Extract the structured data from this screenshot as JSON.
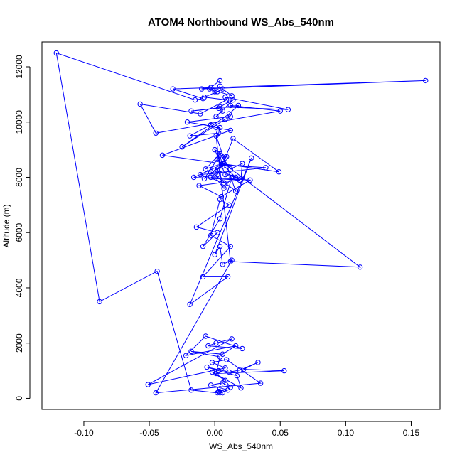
{
  "chart_data": {
    "type": "scatter",
    "mode": "lines+markers",
    "title": "ATOM4 Northbound WS_Abs_540nm",
    "xlabel": "WS_Abs_540nm",
    "ylabel": "Altitude (m)",
    "xlim": [
      -0.132,
      0.172
    ],
    "ylim": [
      -400,
      12900
    ],
    "xticks": [
      -0.1,
      -0.05,
      0.0,
      0.05,
      0.1,
      0.15
    ],
    "xtick_labels": [
      "-0.10",
      "-0.05",
      "0.00",
      "0.05",
      "0.10",
      "0.15"
    ],
    "yticks": [
      0,
      2000,
      4000,
      6000,
      8000,
      10000,
      12000
    ],
    "ytick_labels": [
      "0",
      "2000",
      "4000",
      "6000",
      "8000",
      "10000",
      "12000"
    ],
    "color": "#0000ff",
    "marker": "open-circle",
    "grid": false,
    "legend": false,
    "series": [
      {
        "x": [
          0.004,
          0.01,
          -0.003,
          0.006,
          0.012,
          0.008,
          -0.002,
          0.02,
          0.017,
          0.003,
          -0.006,
          0.011,
          0.019,
          0.033,
          0.022,
          0.053,
          0.001,
          0.004,
          -0.018,
          0.006,
          0.016,
          -0.022,
          -0.007,
          0.021,
          -0.005,
          0.001,
          0.013,
          -0.051,
          0.008,
          -0.002,
          0.009,
          0.035,
          -0.045,
          0.013,
          0.006,
          0.004,
          0.0,
          0.028,
          -0.019,
          0.01,
          -0.009,
          0.012,
          -0.003,
          0.004,
          0.011,
          -0.014,
          0.002,
          -0.009,
          0.004,
          0.013,
          0.007,
          -0.003,
          0.016,
          0.001,
          0.012,
          0.111,
          0.007,
          -0.008,
          0.004,
          0.006,
          0.002,
          0.016,
          0.008,
          0.0,
          0.009,
          0.001,
          0.006,
          -0.007,
          0.004,
          0.012,
          0.021,
          0.02,
          0.002,
          0.007,
          -0.011,
          0.039,
          0.005,
          -0.016,
          0.019,
          -0.012,
          0.005,
          0.027,
          -0.003,
          0.002,
          0.008,
          0.014,
          0.049,
          -0.04,
          0.012,
          0.001,
          -0.003,
          -0.019,
          0.003,
          0.004,
          -0.021,
          0.012,
          0.008,
          -0.025,
          0.011,
          0.018,
          -0.018,
          0.003,
          0.006,
          0.001,
          0.014,
          0.004,
          0.056,
          0.008,
          0.012,
          0.05,
          -0.045,
          -0.057,
          -0.011,
          0.009,
          -0.008,
          0.002,
          0.006,
          0.013,
          -0.004,
          0.0,
          0.004,
          0.004,
          -0.003,
          -0.01,
          0.161,
          -0.032,
          -0.009,
          -0.015,
          -0.121,
          -0.088,
          -0.044,
          -0.018,
          0.002,
          0.006,
          0.004,
          0.003
        ],
        "y": [
          200,
          300,
          480,
          560,
          400,
          650,
          950,
          380,
          820,
          1000,
          1130,
          950,
          1020,
          1300,
          1050,
          1000,
          900,
          1500,
          1700,
          1600,
          1900,
          1550,
          2250,
          1800,
          1900,
          2000,
          2150,
          500,
          1100,
          1300,
          1400,
          550,
          200,
          5000,
          4850,
          5500,
          5200,
          8700,
          3400,
          4400,
          4400,
          5500,
          5900,
          7200,
          7000,
          6200,
          6000,
          5500,
          6500,
          8000,
          7600,
          8200,
          7500,
          9500,
          4950,
          4750,
          8500,
          7950,
          8800,
          8400,
          8650,
          8000,
          8100,
          9000,
          8750,
          8200,
          8500,
          8300,
          8850,
          8300,
          8500,
          7950,
          8250,
          7800,
          8100,
          8350,
          8450,
          8000,
          7900,
          7700,
          7300,
          7900,
          8000,
          8100,
          8700,
          9400,
          8200,
          8800,
          9700,
          9800,
          9900,
          9500,
          9600,
          9800,
          10000,
          10200,
          10100,
          9100,
          10300,
          10600,
          10400,
          10500,
          10400,
          10200,
          10800,
          10550,
          10450,
          10900,
          10600,
          10400,
          9600,
          10650,
          10300,
          10800,
          10900,
          11100,
          11200,
          10950,
          11200,
          11100,
          11300,
          11500,
          11250,
          11200,
          11500,
          11200,
          10850,
          10800,
          12500,
          3500,
          4600,
          300,
          200,
          200,
          350,
          250
        ]
      }
    ]
  }
}
